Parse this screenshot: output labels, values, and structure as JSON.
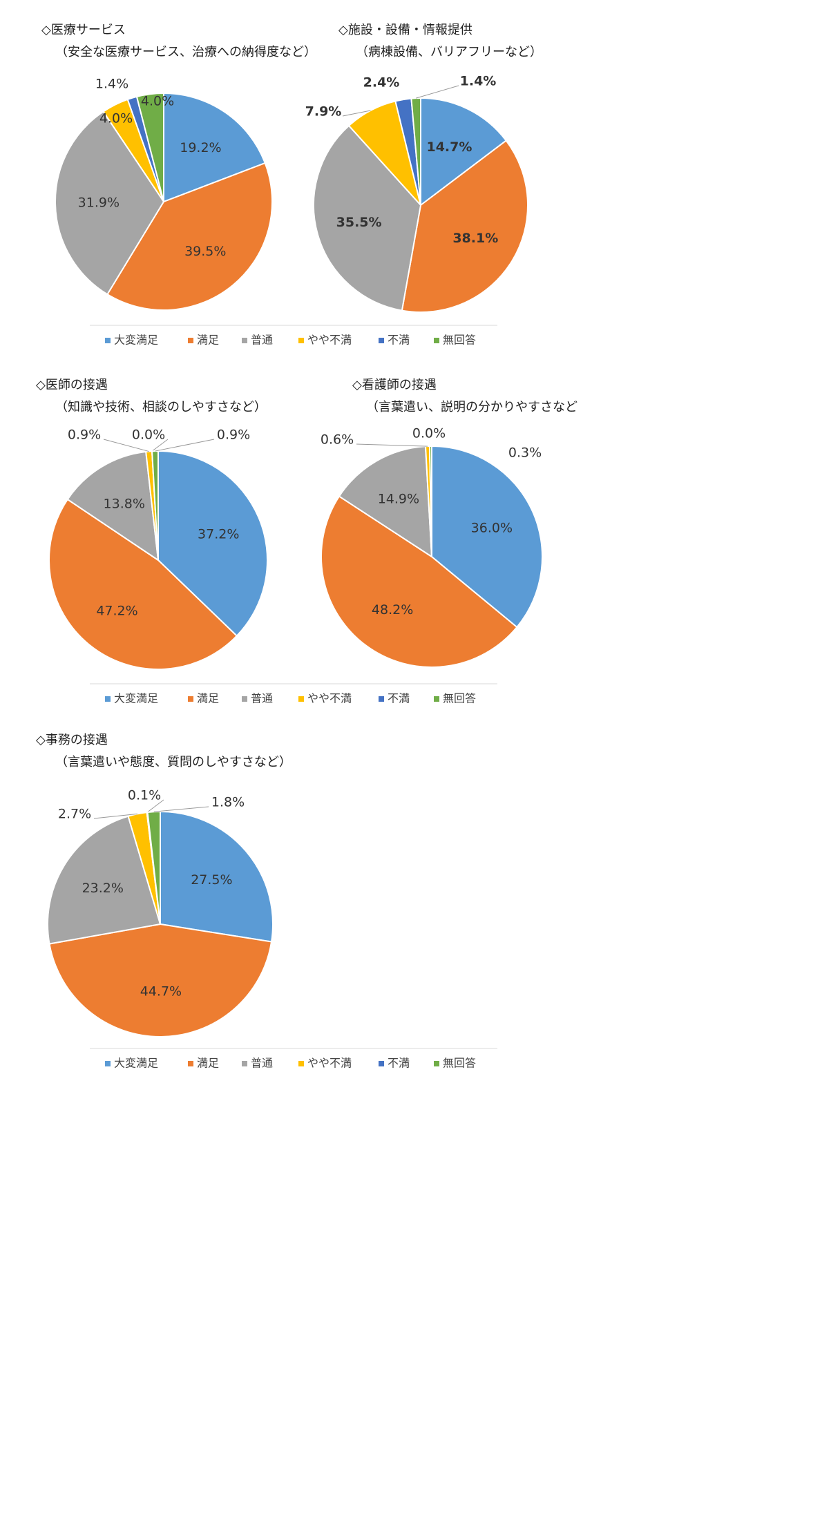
{
  "chart_data": [
    {
      "type": "pie",
      "title": "◇医療サービス",
      "subtitle": "（安全な医療サービス、治療への納得度など）",
      "values": [
        19.2,
        39.5,
        31.9,
        4.0,
        1.4,
        4.0
      ],
      "value_labels": [
        "19.2%",
        "39.5%",
        "31.9%",
        "4.0%",
        "1.4%",
        "4.0%"
      ]
    },
    {
      "type": "pie",
      "title": "◇施設・設備・情報提供",
      "subtitle": "（病棟設備、バリアフリーなど）",
      "values": [
        14.7,
        38.1,
        35.5,
        7.9,
        2.4,
        1.4
      ],
      "value_labels": [
        "14.7%",
        "38.1%",
        "35.5%",
        "7.9%",
        "2.4%",
        "1.4%"
      ]
    },
    {
      "type": "pie",
      "title": "◇医師の接遇",
      "subtitle": "（知識や技術、相談のしやすさなど）",
      "values": [
        37.2,
        47.2,
        13.8,
        0.9,
        0.0,
        0.9
      ],
      "value_labels": [
        "37.2%",
        "47.2%",
        "13.8%",
        "0.9%",
        "0.0%",
        "0.9%"
      ]
    },
    {
      "type": "pie",
      "title": "◇看護師の接遇",
      "subtitle": "（言葉遣い、説明の分かりやすさなど",
      "values": [
        36.0,
        48.2,
        14.9,
        0.6,
        0.0,
        0.3
      ],
      "value_labels": [
        "36.0%",
        "48.2%",
        "14.9%",
        "0.6%",
        "0.0%",
        "0.3%"
      ]
    },
    {
      "type": "pie",
      "title": "◇事務の接遇",
      "subtitle": "（言葉遣いや態度、質問のしやすさなど）",
      "values": [
        27.5,
        44.7,
        23.2,
        2.7,
        0.1,
        1.8
      ],
      "value_labels": [
        "27.5%",
        "44.7%",
        "23.2%",
        "2.7%",
        "0.1%",
        "1.8%"
      ]
    }
  ],
  "legends": [
    {
      "categories": [
        "大変満足",
        "満足",
        "普通",
        "やや不満",
        "不満",
        "無回答"
      ],
      "colors": [
        "#5b9bd5",
        "#ed7d31",
        "#a5a5a5",
        "#ffc000",
        "#4472c4",
        "#70ad47"
      ]
    },
    {
      "categories": [
        "大変満足",
        "満足",
        "普通",
        "やや不満",
        "不満",
        "無回答"
      ],
      "colors": [
        "#5b9bd5",
        "#ed7d31",
        "#a5a5a5",
        "#ffc000",
        "#4472c4",
        "#70ad47"
      ]
    },
    {
      "categories": [
        "大変満足",
        "満足",
        "普通",
        "やや不満",
        "不満",
        "無回答"
      ],
      "colors": [
        "#5b9bd5",
        "#ed7d31",
        "#a5a5a5",
        "#ffc000",
        "#4472c4",
        "#70ad47"
      ]
    }
  ]
}
